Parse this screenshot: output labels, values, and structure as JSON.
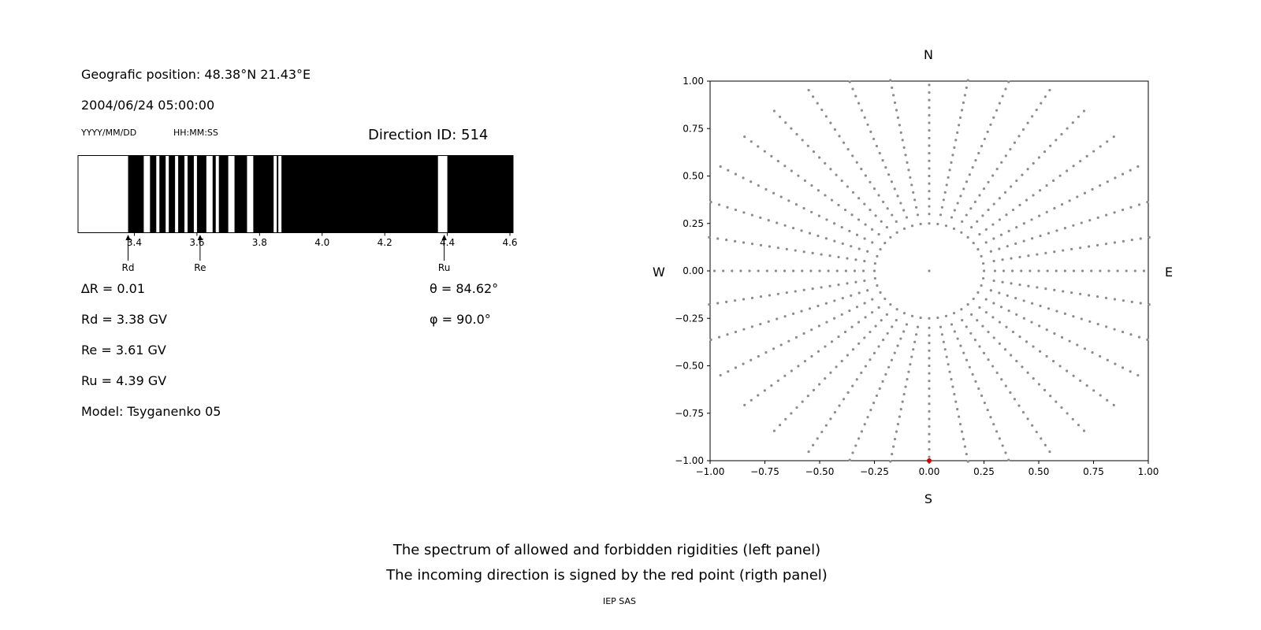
{
  "header": {
    "position": "Geografic position: 48.38°N 21.43°E",
    "datetime": "2004/06/24 05:00:00",
    "date_format_hint": "YYYY/MM/DD",
    "time_format_hint": "HH:MM:SS",
    "direction_id": "Direction ID: 514"
  },
  "parameters": {
    "delta_r": "∆R = 0.01",
    "rd": "Rd = 3.38 GV",
    "re": "Re = 3.61 GV",
    "ru": "Ru = 4.39 GV",
    "model": "Model: Tsyganenko 05",
    "theta": "θ = 84.62°",
    "phi": "φ = 90.0°"
  },
  "captions": {
    "line1": "The spectrum of allowed and forbidden rigidities (left panel)",
    "line2": "The incoming direction is signed by the red point (rigth panel)",
    "credit": "IEP SAS"
  },
  "chart_data": [
    {
      "type": "bar",
      "name": "rigidity-spectrum",
      "description": "Spectrum of allowed (black) and forbidden (white) rigidities",
      "xlim": [
        3.22,
        4.61
      ],
      "xticks": [
        3.4,
        3.6,
        3.8,
        4.0,
        4.2,
        4.4,
        4.6
      ],
      "allowed_color": "#000000",
      "forbidden_color": "#ffffff",
      "delta_r_gv": 0.01,
      "markers": [
        {
          "label": "Rd",
          "value": 3.38
        },
        {
          "label": "Re",
          "value": 3.61
        },
        {
          "label": "Ru",
          "value": 4.39
        }
      ],
      "segment_format": [
        "from_gv",
        "to_gv",
        "state: a=allowed(black), f=forbidden(white)"
      ],
      "segments": [
        [
          3.22,
          3.38,
          "f"
        ],
        [
          3.38,
          3.43,
          "a"
        ],
        [
          3.43,
          3.45,
          "f"
        ],
        [
          3.45,
          3.47,
          "a"
        ],
        [
          3.47,
          3.48,
          "f"
        ],
        [
          3.48,
          3.5,
          "a"
        ],
        [
          3.5,
          3.51,
          "f"
        ],
        [
          3.51,
          3.53,
          "a"
        ],
        [
          3.53,
          3.54,
          "f"
        ],
        [
          3.54,
          3.56,
          "a"
        ],
        [
          3.56,
          3.57,
          "f"
        ],
        [
          3.57,
          3.59,
          "a"
        ],
        [
          3.59,
          3.6,
          "f"
        ],
        [
          3.6,
          3.63,
          "a"
        ],
        [
          3.63,
          3.65,
          "f"
        ],
        [
          3.65,
          3.66,
          "a"
        ],
        [
          3.66,
          3.67,
          "f"
        ],
        [
          3.67,
          3.7,
          "a"
        ],
        [
          3.7,
          3.72,
          "f"
        ],
        [
          3.72,
          3.76,
          "a"
        ],
        [
          3.76,
          3.78,
          "f"
        ],
        [
          3.78,
          3.845,
          "a"
        ],
        [
          3.845,
          3.855,
          "f"
        ],
        [
          3.855,
          3.86,
          "a"
        ],
        [
          3.86,
          3.87,
          "f"
        ],
        [
          3.87,
          4.37,
          "a"
        ],
        [
          4.37,
          4.4,
          "f"
        ],
        [
          4.4,
          4.61,
          "a"
        ]
      ]
    },
    {
      "type": "scatter",
      "name": "incoming-direction-map",
      "description": "Asymptotic direction dots (gray) with incoming direction marked by red point",
      "xlim": [
        -1.0,
        1.0
      ],
      "ylim": [
        -1.0,
        1.0
      ],
      "xticks": [
        -1.0,
        -0.75,
        -0.5,
        -0.25,
        0.0,
        0.25,
        0.5,
        0.75,
        1.0
      ],
      "yticks": [
        -1.0,
        -0.75,
        -0.5,
        -0.25,
        0.0,
        0.25,
        0.5,
        0.75,
        1.0
      ],
      "compass": {
        "top": "N",
        "bottom": "S",
        "left": "W",
        "right": "E"
      },
      "dot_color": "#8c8c8c",
      "spokes": {
        "count": 36,
        "start_angle_deg": 0,
        "r_start": 0.3,
        "r_end": 1.1,
        "r_step": 0.04
      },
      "inner_ring": {
        "radius": 0.25,
        "count": 40
      },
      "center_dot": true,
      "red_point": {
        "x": 0.0,
        "y": -1.0,
        "color": "#cc0000",
        "label": "incoming direction"
      }
    }
  ]
}
